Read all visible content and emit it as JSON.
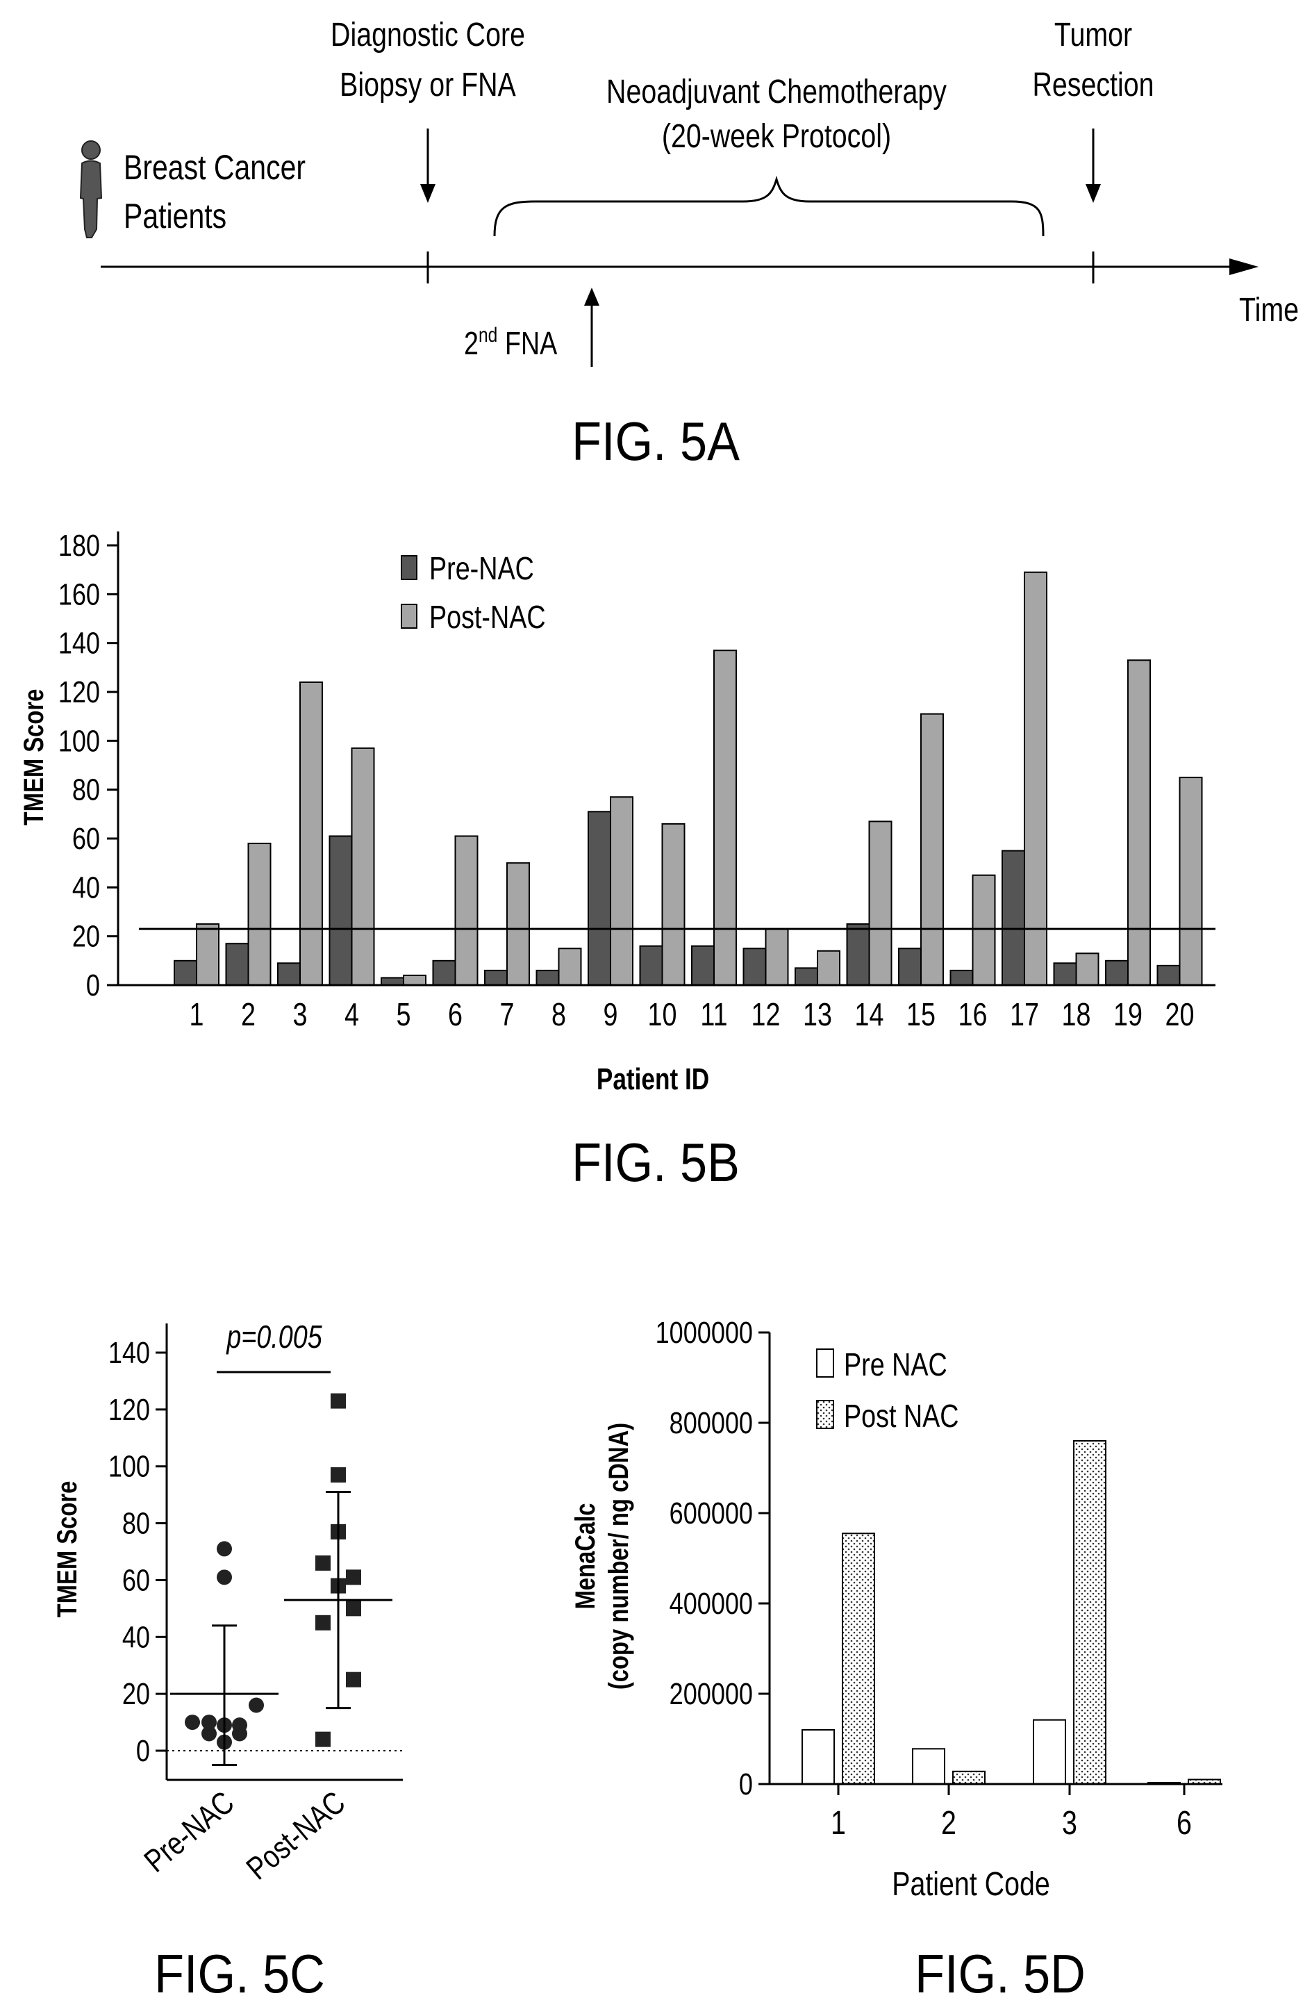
{
  "fig5a": {
    "patients_line1": "Breast Cancer",
    "patients_line2": "Patients",
    "biopsy_line1": "Diagnostic Core",
    "biopsy_line2": "Biopsy or FNA",
    "nac_line1": "Neoadjuvant Chemotherapy",
    "nac_line2": "(20-week Protocol)",
    "resection_line1": "Tumor",
    "resection_line2": "Resection",
    "second_fna_prefix": "2",
    "second_fna_sup": "nd",
    "second_fna_suffix": " FNA",
    "time_label": "Time",
    "caption": "FIG. 5A"
  },
  "fig5b": {
    "caption": "FIG. 5B",
    "chart_data": {
      "type": "bar",
      "xlabel": "Patient ID",
      "ylabel": "TMEM Score",
      "ylim": [
        0,
        180
      ],
      "yticks": [
        "0",
        "20",
        "40",
        "60",
        "80",
        "100",
        "120",
        "140",
        "160",
        "180"
      ],
      "categories": [
        "1",
        "2",
        "3",
        "4",
        "5",
        "6",
        "7",
        "8",
        "9",
        "10",
        "11",
        "12",
        "13",
        "14",
        "15",
        "16",
        "17",
        "18",
        "19",
        "20"
      ],
      "series": [
        {
          "name": "Pre-NAC",
          "color": "#555555",
          "values": [
            10,
            17,
            9,
            61,
            3,
            10,
            6,
            6,
            71,
            16,
            16,
            15,
            7,
            25,
            15,
            6,
            55,
            9,
            10,
            8
          ]
        },
        {
          "name": "Post-NAC",
          "color": "#a6a6a6",
          "values": [
            25,
            58,
            124,
            97,
            4,
            61,
            50,
            15,
            77,
            66,
            137,
            23,
            14,
            67,
            111,
            45,
            169,
            13,
            133,
            85
          ]
        }
      ],
      "threshold": 23,
      "legend": "top-left"
    }
  },
  "fig5c": {
    "caption": "FIG. 5C",
    "chart_data": {
      "type": "scatter",
      "ylabel": "TMEM Score",
      "ylim": [
        -10,
        145
      ],
      "yticks": [
        "0",
        "20",
        "40",
        "60",
        "80",
        "100",
        "120",
        "140"
      ],
      "categories": [
        "Pre-NAC",
        "Post-NAC"
      ],
      "annotation": "p=0.005",
      "series": [
        {
          "name": "Pre-NAC",
          "marker": "circle",
          "values": [
            71,
            61,
            10,
            10,
            9,
            9,
            6,
            6,
            3,
            16
          ],
          "mean": 20,
          "sd_upper": 44,
          "sd_lower": -5
        },
        {
          "name": "Post-NAC",
          "marker": "square",
          "values": [
            123,
            97,
            77,
            66,
            61,
            58,
            50,
            45,
            25,
            4
          ],
          "mean": 53,
          "sd_upper": 91,
          "sd_lower": 15
        }
      ]
    }
  },
  "fig5d": {
    "caption": "FIG. 5D",
    "chart_data": {
      "type": "bar",
      "xlabel": "Patient Code",
      "ylabel_line1": "MenaCalc",
      "ylabel_line2": "(copy number/ ng cDNA)",
      "ylim": [
        0,
        1000000
      ],
      "yticks": [
        "0",
        "200000",
        "400000",
        "600000",
        "800000",
        "1000000"
      ],
      "categories": [
        "1",
        "2",
        "3",
        "6"
      ],
      "series": [
        {
          "name": "Pre NAC",
          "pattern": "open",
          "values": [
            120000,
            78000,
            142000,
            3000
          ]
        },
        {
          "name": "Post NAC",
          "pattern": "dotted",
          "values": [
            555000,
            28000,
            760000,
            10000
          ]
        }
      ],
      "legend": "top-left"
    }
  }
}
